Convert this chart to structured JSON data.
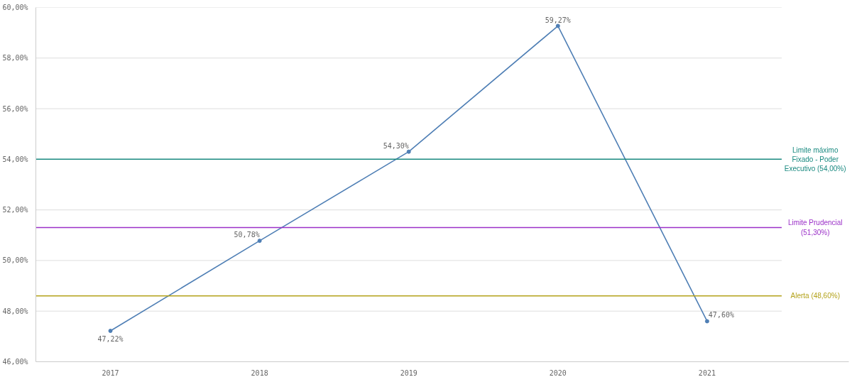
{
  "chart_data": {
    "type": "line",
    "categories": [
      "2017",
      "2018",
      "2019",
      "2020",
      "2021"
    ],
    "series": [
      {
        "color": "#4f7fb5",
        "values": [
          47.22,
          50.78,
          54.3,
          59.27,
          47.6
        ],
        "value_labels": [
          "47,22%",
          "50,78%",
          "54,30%",
          "59,27%",
          "47,60%"
        ]
      }
    ],
    "ylim": [
      46,
      60
    ],
    "yticks": [
      {
        "value": 46,
        "label": "46,00%"
      },
      {
        "value": 48,
        "label": "48,00%"
      },
      {
        "value": 50,
        "label": "50,00%"
      },
      {
        "value": 52,
        "label": "52,00%"
      },
      {
        "value": 54,
        "label": "54,00%"
      },
      {
        "value": 56,
        "label": "56,00%"
      },
      {
        "value": 58,
        "label": "58,00%"
      },
      {
        "value": 60,
        "label": "60,00%"
      }
    ],
    "grid": "y",
    "marker": "circle",
    "line_style": "solid",
    "ref_lines": [
      {
        "axis": "y",
        "value": 54.0,
        "label": "Limite máximo Fixado - Poder Executivo (54,00%)",
        "color": "#1a8a80"
      },
      {
        "axis": "y",
        "value": 51.3,
        "label": "Limite Prudencial (51,30%)",
        "color": "#9b30c8"
      },
      {
        "axis": "y",
        "value": 48.6,
        "label": "Alerta (48,60%)",
        "color": "#b3a21a"
      }
    ]
  }
}
